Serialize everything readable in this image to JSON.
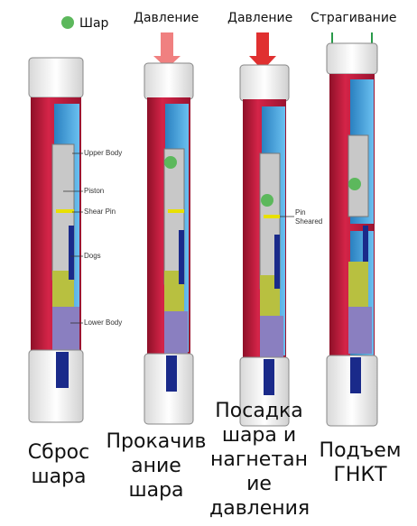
{
  "legend": {
    "ball_label": "Шар"
  },
  "columns": [
    {
      "header": "",
      "caption_lines": [
        "Сброс",
        "шара"
      ]
    },
    {
      "header": "Давление",
      "caption_lines": [
        "Прокачив",
        "ание",
        "шара"
      ]
    },
    {
      "header": "Давление",
      "caption_lines": [
        "Посадка",
        "шара и",
        "нагнетан",
        "ие",
        "давления"
      ]
    },
    {
      "header": "Страгивание",
      "caption_lines": [
        "Подъем",
        "ГНКТ"
      ]
    }
  ],
  "labels": {
    "upper_body": "Upper Body",
    "piston": "Piston",
    "shear_pin": "Shear Pin",
    "dogs": "Dogs",
    "lower_body": "Lower Body",
    "pin_sheared_1": "Pin",
    "pin_sheared_2": "Sheared"
  },
  "colors": {
    "red": "#c41e3a",
    "red_dark": "#8e1028",
    "blue": "#3aa0d8",
    "gray": "#c8c8c8",
    "yellow": "#e8e000",
    "olive": "#b8c040",
    "purple": "#8a7fc0",
    "navy": "#1a2a8a",
    "ball": "#5cb85c",
    "arrow": "#f08080",
    "arrow_dark": "#e03030",
    "lift_arrow": "#2a9a4a"
  }
}
